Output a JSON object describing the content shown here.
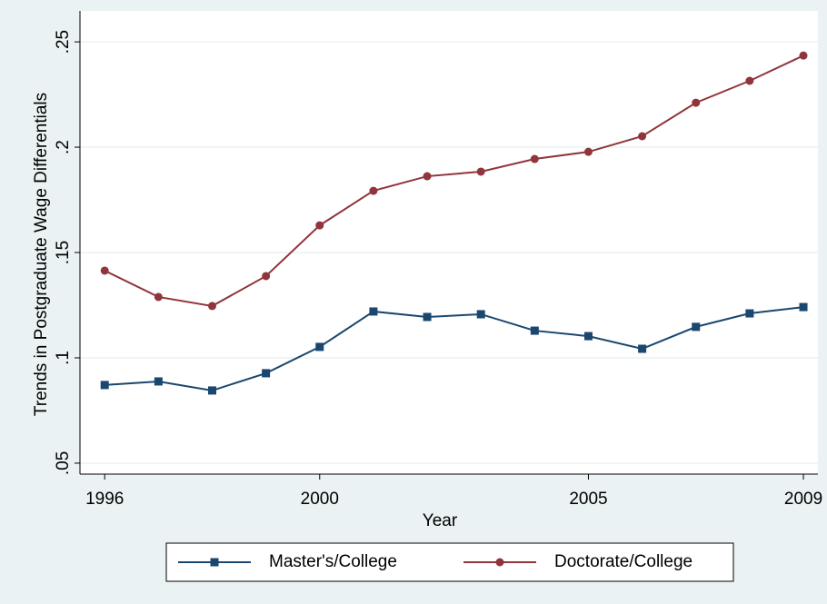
{
  "chart_data": {
    "type": "line",
    "x_label": "Year",
    "y_label": "Trends in Postgraduate Wage Differentials",
    "x": [
      1996,
      1997,
      1998,
      1999,
      2000,
      2001,
      2002,
      2003,
      2004,
      2005,
      2006,
      2007,
      2008,
      2009
    ],
    "series": [
      {
        "name": "Master's/College",
        "color": "#1a476f",
        "marker": "square",
        "values": [
          0.0871,
          0.0888,
          0.0845,
          0.0927,
          0.1052,
          0.122,
          0.1194,
          0.1207,
          0.1129,
          0.1103,
          0.1043,
          0.1147,
          0.1211,
          0.1241
        ]
      },
      {
        "name": "Doctorate/College",
        "color": "#90353b",
        "marker": "circle",
        "values": [
          0.1414,
          0.1289,
          0.1246,
          0.1388,
          0.1629,
          0.1793,
          0.1862,
          0.1884,
          0.1944,
          0.1978,
          0.2052,
          0.2211,
          0.2315,
          0.2435
        ]
      }
    ],
    "xlim": [
      1995.54,
      2009.27
    ],
    "ylim": [
      0.0448,
      0.2647
    ],
    "xticks": [
      1996,
      2000,
      2005,
      2009
    ],
    "yticks": [
      {
        "value": 0.05,
        "label": ".05"
      },
      {
        "value": 0.1,
        "label": ".1"
      },
      {
        "value": 0.15,
        "label": ".15"
      },
      {
        "value": 0.2,
        "label": ".2"
      },
      {
        "value": 0.25,
        "label": ".25"
      }
    ],
    "grid": true,
    "legend_position": "bottom"
  }
}
